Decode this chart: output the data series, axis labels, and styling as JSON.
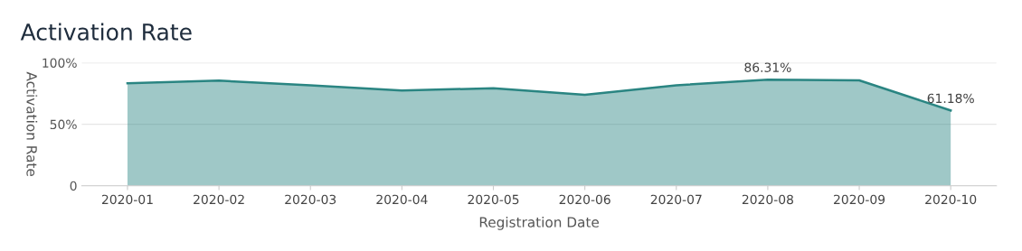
{
  "chart_data": {
    "type": "area",
    "title": "Activation Rate",
    "xlabel": "Registration Date",
    "ylabel": "Activation Rate",
    "categories": [
      "2020-01",
      "2020-02",
      "2020-03",
      "2020-04",
      "2020-05",
      "2020-06",
      "2020-07",
      "2020-08",
      "2020-09",
      "2020-10"
    ],
    "series": [
      {
        "color": "#2a8582",
        "values": [
          83.3,
          85.5,
          81.6,
          77.4,
          79.3,
          74.0,
          81.7,
          86.31,
          85.7,
          61.18
        ],
        "value_labels": [
          null,
          null,
          null,
          null,
          null,
          null,
          null,
          "86.31%",
          null,
          "61.18%"
        ]
      }
    ],
    "ylim": [
      0,
      100
    ],
    "yticks": [
      {
        "value": 0,
        "label": "0"
      },
      {
        "value": 50,
        "label": "50%"
      },
      {
        "value": 100,
        "label": "100%"
      }
    ],
    "grid": "y",
    "legend": false
  }
}
